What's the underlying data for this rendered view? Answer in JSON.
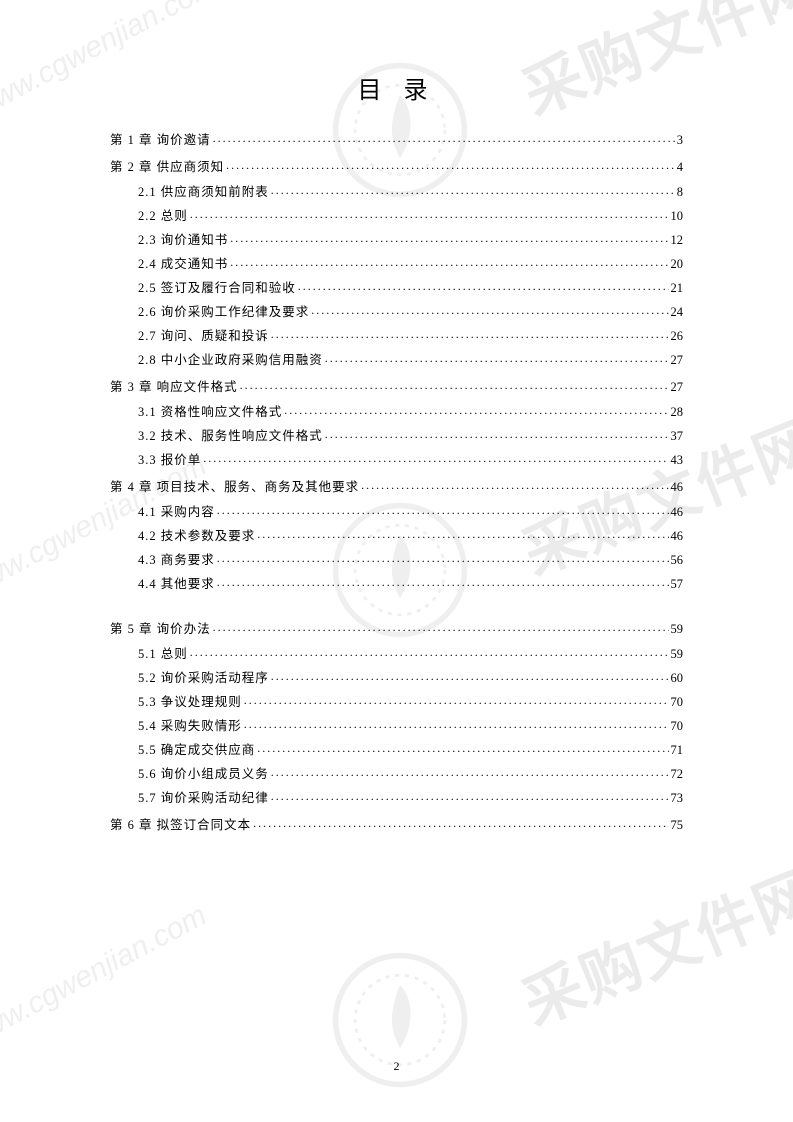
{
  "title": "目 录",
  "page_number": "2",
  "colors": {
    "text": "#000000",
    "background": "#ffffff",
    "watermark": "#808080"
  },
  "typography": {
    "title_fontsize_pt": 18,
    "body_fontsize_pt": 9.5,
    "font_family": "SimSun"
  },
  "watermark": {
    "url_text": "www.cgwenjian.com",
    "cn_text": "采购文件网"
  },
  "toc": [
    {
      "type": "chapter",
      "label": "第 1 章  询价邀请",
      "page": "3",
      "first": true
    },
    {
      "type": "chapter",
      "label": "第 2 章  供应商须知",
      "page": "4"
    },
    {
      "type": "sub",
      "label": "2.1  供应商须知前附表",
      "page": "8"
    },
    {
      "type": "sub",
      "label": "2.2  总则",
      "page": "10"
    },
    {
      "type": "sub",
      "label": "2.3  询价通知书",
      "page": "12"
    },
    {
      "type": "sub",
      "label": "2.4  成交通知书",
      "page": "20"
    },
    {
      "type": "sub",
      "label": "2.5  签订及履行合同和验收",
      "page": "21"
    },
    {
      "type": "sub",
      "label": "2.6  询价采购工作纪律及要求",
      "page": "24"
    },
    {
      "type": "sub",
      "label": "2.7  询问、质疑和投诉",
      "page": "26"
    },
    {
      "type": "sub",
      "label": "2.8  中小企业政府采购信用融资",
      "page": "27"
    },
    {
      "type": "chapter",
      "label": "第 3 章  响应文件格式",
      "page": "27"
    },
    {
      "type": "sub",
      "label": "3.1  资格性响应文件格式",
      "page": "28"
    },
    {
      "type": "sub",
      "label": "3.2  技术、服务性响应文件格式",
      "page": "37"
    },
    {
      "type": "sub",
      "label": "3.3  报价单",
      "page": "43"
    },
    {
      "type": "chapter",
      "label": "第 4 章  项目技术、服务、商务及其他要求",
      "page": "46"
    },
    {
      "type": "sub",
      "label": "4.1  采购内容",
      "page": "46"
    },
    {
      "type": "sub",
      "label": "4.2  技术参数及要求",
      "page": "46"
    },
    {
      "type": "sub",
      "label": "4.3  商务要求",
      "page": "56"
    },
    {
      "type": "sub",
      "label": "4.4  其他要求",
      "page": "57"
    },
    {
      "type": "chapter",
      "label": "第 5 章  询价办法",
      "page": "59",
      "gap_above": true
    },
    {
      "type": "sub",
      "label": "5.1  总则",
      "page": "59"
    },
    {
      "type": "sub",
      "label": "5.2  询价采购活动程序",
      "page": "60"
    },
    {
      "type": "sub",
      "label": "5.3  争议处理规则",
      "page": "70"
    },
    {
      "type": "sub",
      "label": "5.4  采购失败情形",
      "page": "70"
    },
    {
      "type": "sub",
      "label": "5.5  确定成交供应商",
      "page": "71"
    },
    {
      "type": "sub",
      "label": "5.6  询价小组成员义务",
      "page": "72"
    },
    {
      "type": "sub",
      "label": "5.7  询价采购活动纪律",
      "page": "73"
    },
    {
      "type": "chapter",
      "label": "第 6 章  拟签订合同文本",
      "page": "75"
    }
  ]
}
